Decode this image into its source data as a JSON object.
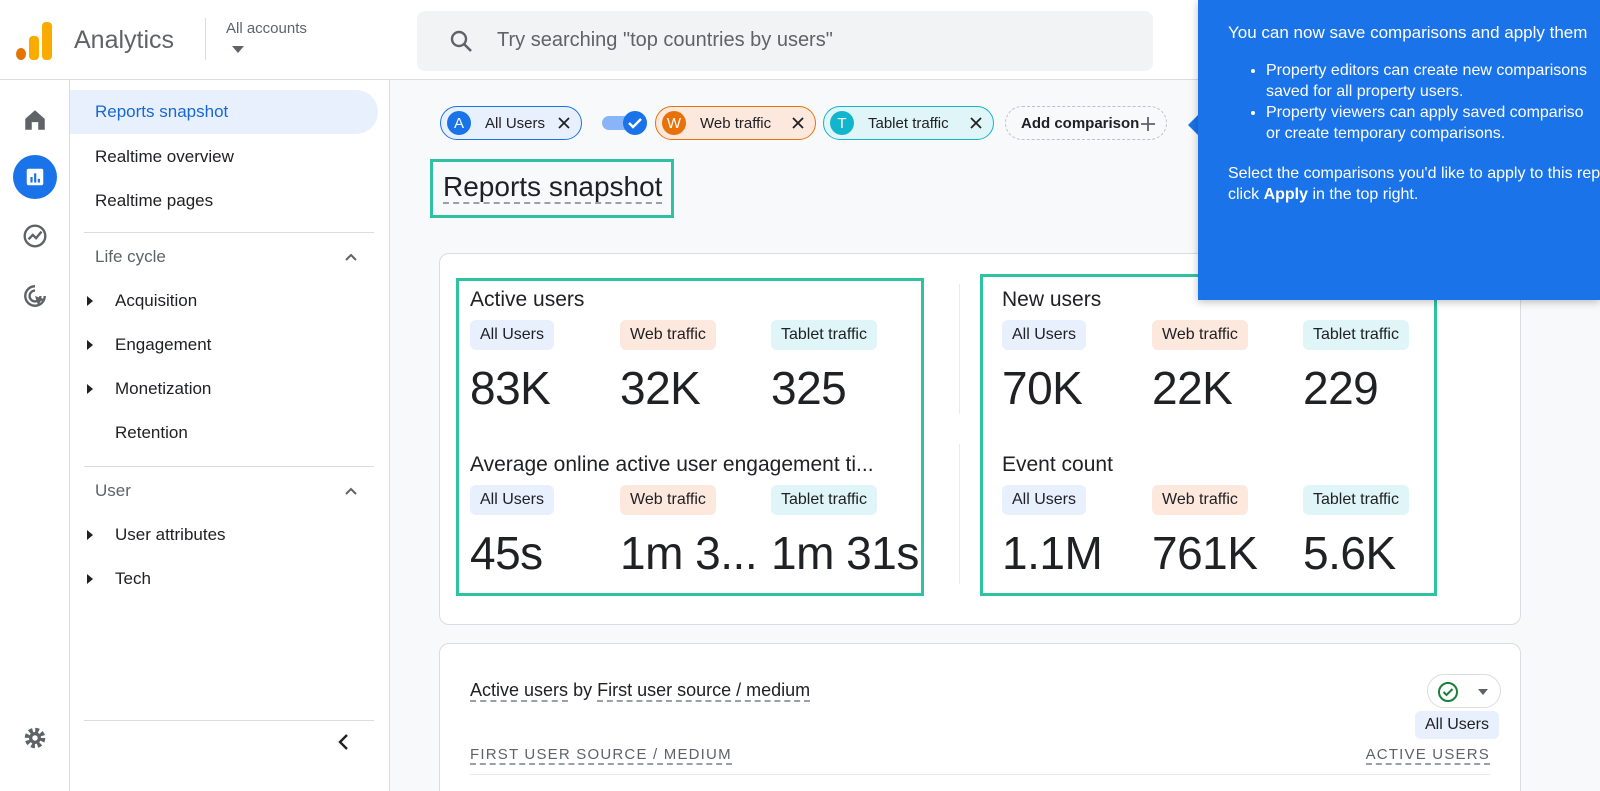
{
  "app": {
    "title": "Analytics",
    "account_label": "All accounts"
  },
  "search": {
    "placeholder": "Try searching \"top countries by users\""
  },
  "nav": {
    "items": [
      {
        "label": "Reports snapshot"
      },
      {
        "label": "Realtime overview"
      },
      {
        "label": "Realtime pages"
      }
    ],
    "sections": [
      {
        "label": "Life cycle",
        "children": [
          "Acquisition",
          "Engagement",
          "Monetization",
          "Retention"
        ]
      },
      {
        "label": "User",
        "children": [
          "User attributes",
          "Tech"
        ]
      }
    ]
  },
  "comparisons": [
    {
      "letter": "A",
      "label": "All Users",
      "color": "#1a73e8"
    },
    {
      "letter": "W",
      "label": "Web traffic",
      "color": "#e8710a"
    },
    {
      "letter": "T",
      "label": "Tablet traffic",
      "color": "#12b5cb"
    }
  ],
  "add_comparison": "Add comparison",
  "page_title": "Reports snapshot",
  "metrics_left": [
    {
      "title": "Active users",
      "values": [
        "83K",
        "32K",
        "325"
      ]
    },
    {
      "title": "Average online active user engagement ti...",
      "values": [
        "45s",
        "1m 3...",
        "1m 31s"
      ]
    }
  ],
  "metrics_right": [
    {
      "title": "New users",
      "values": [
        "70K",
        "22K",
        "229"
      ]
    },
    {
      "title": "Event count",
      "values": [
        "1.1M",
        "761K",
        "5.6K"
      ]
    }
  ],
  "segment_labels": [
    "All Users",
    "Web traffic",
    "Tablet traffic"
  ],
  "table": {
    "title_metric": "Active users",
    "title_by": "by",
    "title_dimension": "First user source / medium",
    "col_left": "FIRST USER SOURCE / MEDIUM",
    "col_right": "ACTIVE USERS",
    "filter_label": "All Users"
  },
  "popup": {
    "line1": "You can now save comparisons and apply them",
    "bullets": [
      [
        "Property editors can create new comparisons",
        "saved for all property users."
      ],
      [
        "Property viewers can apply saved compariso",
        "or create temporary comparisons."
      ]
    ],
    "line2": "Select the comparisons you'd like to apply to this rep",
    "line3_prefix": "click ",
    "line3_bold": "Apply",
    "line3_suffix": " in the top right."
  },
  "colors": {
    "brand_blue": "#1a73e8",
    "highlight": "#2fc2a0"
  }
}
